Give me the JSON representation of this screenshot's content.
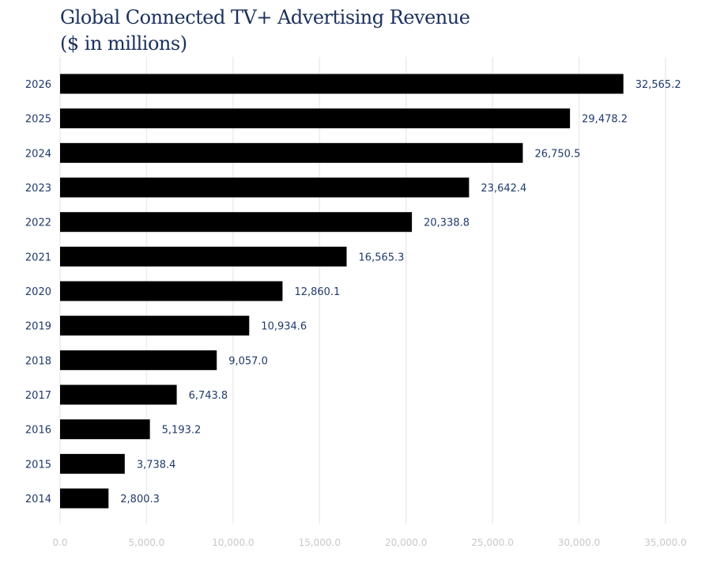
{
  "chart_data": {
    "type": "bar",
    "orientation": "horizontal",
    "title": "Global Connected TV+ Advertising Revenue",
    "subtitle": "($ in millions)",
    "categories": [
      "2026",
      "2025",
      "2024",
      "2023",
      "2022",
      "2021",
      "2020",
      "2019",
      "2018",
      "2017",
      "2016",
      "2015",
      "2014"
    ],
    "values": [
      32565.2,
      29478.2,
      26750.5,
      23642.4,
      20338.8,
      16565.3,
      12860.1,
      10934.6,
      9057.0,
      6743.8,
      5193.2,
      3738.4,
      2800.3
    ],
    "data_labels": [
      "32,565.2",
      "29,478.2",
      "26,750.5",
      "23,642.4",
      "20,338.8",
      "16,565.3",
      "12,860.1",
      "10,934.6",
      "9,057.0",
      "6,743.8",
      "5,193.2",
      "3,738.4",
      "2,800.3"
    ],
    "xlim": [
      0,
      35000
    ],
    "x_ticks": [
      0,
      5000,
      10000,
      15000,
      20000,
      25000,
      30000,
      35000
    ],
    "x_tick_labels": [
      "0.0",
      "5,000.0",
      "10,000.0",
      "15,000.0",
      "20,000.0",
      "25,000.0",
      "30,000.0",
      "35,000.0"
    ],
    "grid": true,
    "legend": "none",
    "colors": {
      "bar": "#000000",
      "title": "#1b305c",
      "labels": "#1f3a6b",
      "ticks": "#c8c8c8",
      "grid": "#ececec"
    }
  }
}
